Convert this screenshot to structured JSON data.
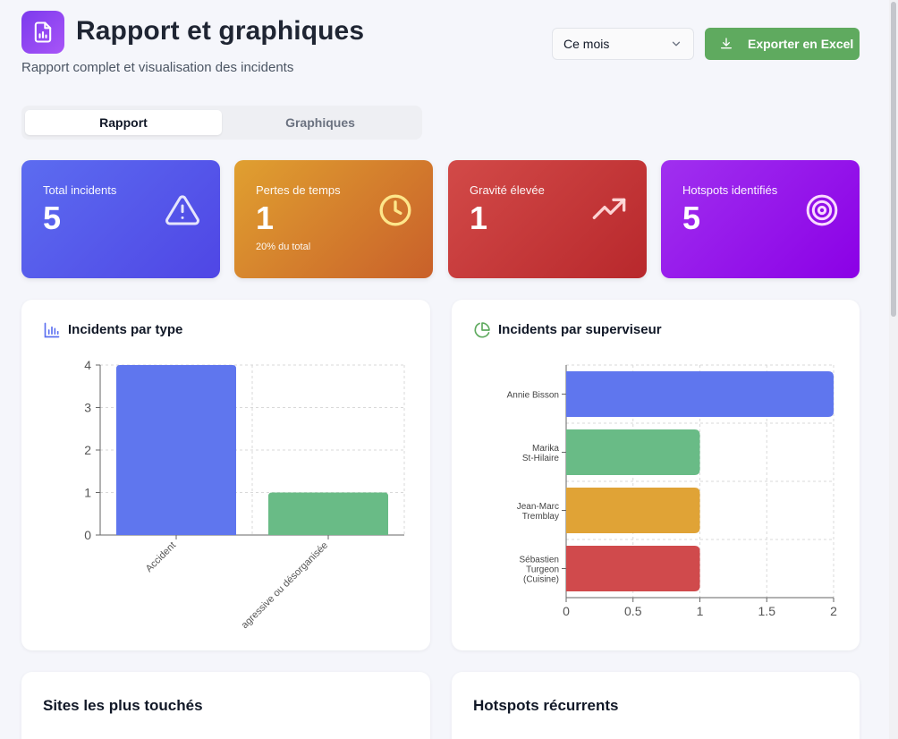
{
  "header": {
    "title": "Rapport et graphiques",
    "subtitle": "Rapport complet et visualisation des incidents",
    "period_value": "Ce mois",
    "export_label": "Exporter en Excel"
  },
  "tabs": [
    {
      "label": "Rapport",
      "active": true
    },
    {
      "label": "Graphiques",
      "active": false
    }
  ],
  "stats": [
    {
      "label": "Total incidents",
      "value": "5",
      "note": "",
      "icon": "warning-icon",
      "gradient": [
        "#5c6cf0",
        "#4f46e5"
      ]
    },
    {
      "label": "Pertes de temps",
      "value": "1",
      "note": "20% du total",
      "icon": "clock-icon",
      "gradient": [
        "#e0a030",
        "#c9602a"
      ]
    },
    {
      "label": "Gravité élevée",
      "value": "1",
      "note": "",
      "icon": "trending-up-icon",
      "gradient": [
        "#d24a48",
        "#b8282c"
      ]
    },
    {
      "label": "Hotspots identifiés",
      "value": "5",
      "note": "",
      "icon": "target-icon",
      "gradient": [
        "#a030ef",
        "#8b00e6"
      ]
    }
  ],
  "panels": {
    "type_chart_title": "Incidents par type",
    "supervisor_chart_title": "Incidents par superviseur",
    "sites_title": "Sites les plus touchés",
    "hotspots_title": "Hotspots récurrents"
  },
  "chart_data": [
    {
      "type": "bar",
      "title": "Incidents par type",
      "categories": [
        "Accident",
        "agressive ou désorganisée"
      ],
      "values": [
        4,
        1
      ],
      "colors": [
        "#5f76ee",
        "#69bb86"
      ],
      "ylim": [
        0,
        4
      ],
      "yticks": [
        "0",
        "1",
        "2",
        "3",
        "4"
      ],
      "grid": true
    },
    {
      "type": "bar",
      "orientation": "horizontal",
      "title": "Incidents par superviseur",
      "categories": [
        [
          "Annie Bisson"
        ],
        [
          "Marika",
          "St-Hilaire"
        ],
        [
          "Jean-Marc",
          "Tremblay"
        ],
        [
          "Sébastien",
          "Turgeon",
          "(Cuisine)"
        ]
      ],
      "values": [
        2,
        1,
        1,
        1
      ],
      "colors": [
        "#5f76ee",
        "#69bb86",
        "#e0a336",
        "#d04a4c"
      ],
      "xlim": [
        0,
        2
      ],
      "xticks": [
        "0",
        "0.5",
        "1",
        "1.5",
        "2"
      ],
      "grid": true
    }
  ]
}
